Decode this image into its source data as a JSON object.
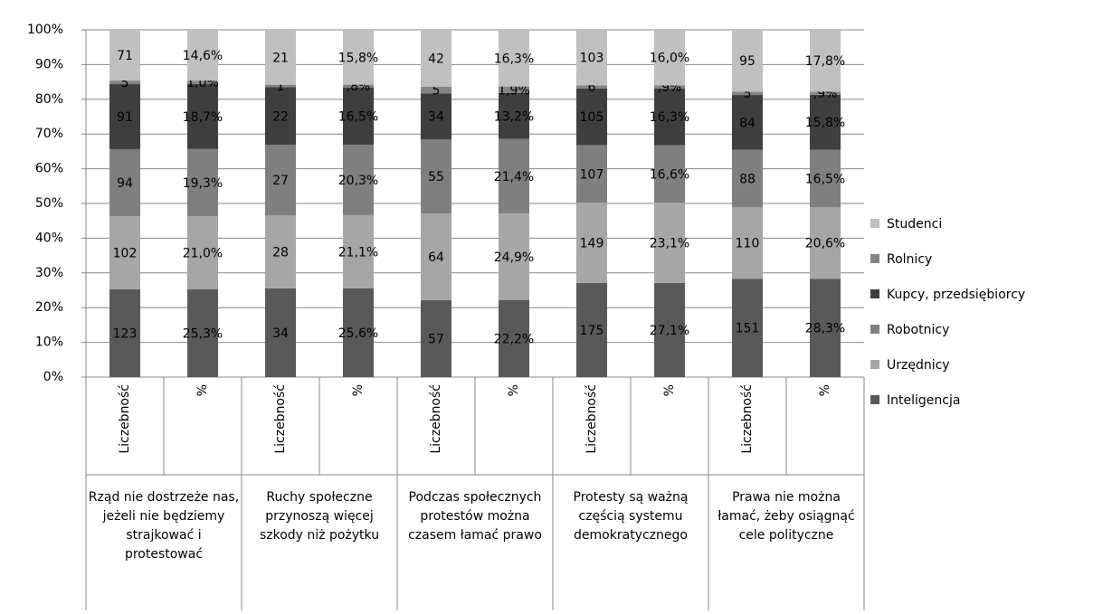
{
  "chart_data": {
    "type": "stacked_percent_bar",
    "categories": [
      "Liczebność",
      "%",
      "Liczebność",
      "%",
      "Liczebność",
      "%",
      "Liczebność",
      "%",
      "Liczebność",
      "%"
    ],
    "groups": [
      "Rząd nie dostrzeże nas, jeżeli nie będziemy strajkować i protestować",
      "Ruchy społeczne przynoszą więcej szkody niż pożytku",
      "Podczas społecznych protestów można czasem łamać prawo",
      "Protesty są ważną częścią systemu demokratycznego",
      "Prawa nie można łamać, żeby osiągnąć cele polityczne"
    ],
    "series": [
      {
        "name": "Inteligencja",
        "color": "#595959",
        "values": [
          123,
          25.3,
          34,
          25.6,
          57,
          22.2,
          175,
          27.1,
          151,
          28.3
        ],
        "value_labels": [
          "123",
          "25,3%",
          "34",
          "25,6%",
          "57",
          "22,2%",
          "175",
          "27,1%",
          "151",
          "28,3%"
        ]
      },
      {
        "name": "Urzędnicy",
        "color": "#a6a6a6",
        "values": [
          102,
          21.0,
          28,
          21.1,
          64,
          24.9,
          149,
          23.1,
          110,
          20.6
        ],
        "value_labels": [
          "102",
          "21,0%",
          "28",
          "21,1%",
          "64",
          "24,9%",
          "149",
          "23,1%",
          "110",
          "20,6%"
        ]
      },
      {
        "name": "Robotnicy",
        "color": "#7f7f7f",
        "values": [
          94,
          19.3,
          27,
          20.3,
          55,
          21.4,
          107,
          16.6,
          88,
          16.5
        ],
        "value_labels": [
          "94",
          "19,3%",
          "27",
          "20,3%",
          "55",
          "21,4%",
          "107",
          "16,6%",
          "88",
          "16,5%"
        ]
      },
      {
        "name": "Kupcy, przedsiębiorcy",
        "color": "#3f3f3f",
        "values": [
          91,
          18.7,
          22,
          16.5,
          34,
          13.2,
          105,
          16.3,
          84,
          15.8
        ],
        "value_labels": [
          "91",
          "18,7%",
          "22",
          "16,5%",
          "34",
          "13,2%",
          "105",
          "16,3%",
          "84",
          "15,8%"
        ]
      },
      {
        "name": "Rolnicy",
        "color": "#858585",
        "values": [
          5,
          1.0,
          1,
          0.8,
          5,
          1.9,
          6,
          0.9,
          5,
          0.9
        ],
        "value_labels": [
          "5",
          "1,0%",
          "1",
          ",8%",
          "5",
          "1,9%",
          "6",
          ",9%",
          "5",
          ",9%"
        ]
      },
      {
        "name": "Studenci",
        "color": "#c0c0c0",
        "values": [
          71,
          14.6,
          21,
          15.8,
          42,
          16.3,
          103,
          16.0,
          95,
          17.8
        ],
        "value_labels": [
          "71",
          "14,6%",
          "21",
          "15,8%",
          "42",
          "16,3%",
          "103",
          "16,0%",
          "95",
          "17,8%"
        ]
      }
    ],
    "ylim": [
      0,
      100
    ],
    "yticks": [
      {
        "value": 0,
        "label": "0%"
      },
      {
        "value": 10,
        "label": "10%"
      },
      {
        "value": 20,
        "label": "20%"
      },
      {
        "value": 30,
        "label": "30%"
      },
      {
        "value": 40,
        "label": "40%"
      },
      {
        "value": 50,
        "label": "50%"
      },
      {
        "value": 60,
        "label": "60%"
      },
      {
        "value": 70,
        "label": "70%"
      },
      {
        "value": 80,
        "label": "80%"
      },
      {
        "value": 90,
        "label": "90%"
      },
      {
        "value": 100,
        "label": "100%"
      }
    ],
    "grid": true,
    "legend": "right"
  }
}
